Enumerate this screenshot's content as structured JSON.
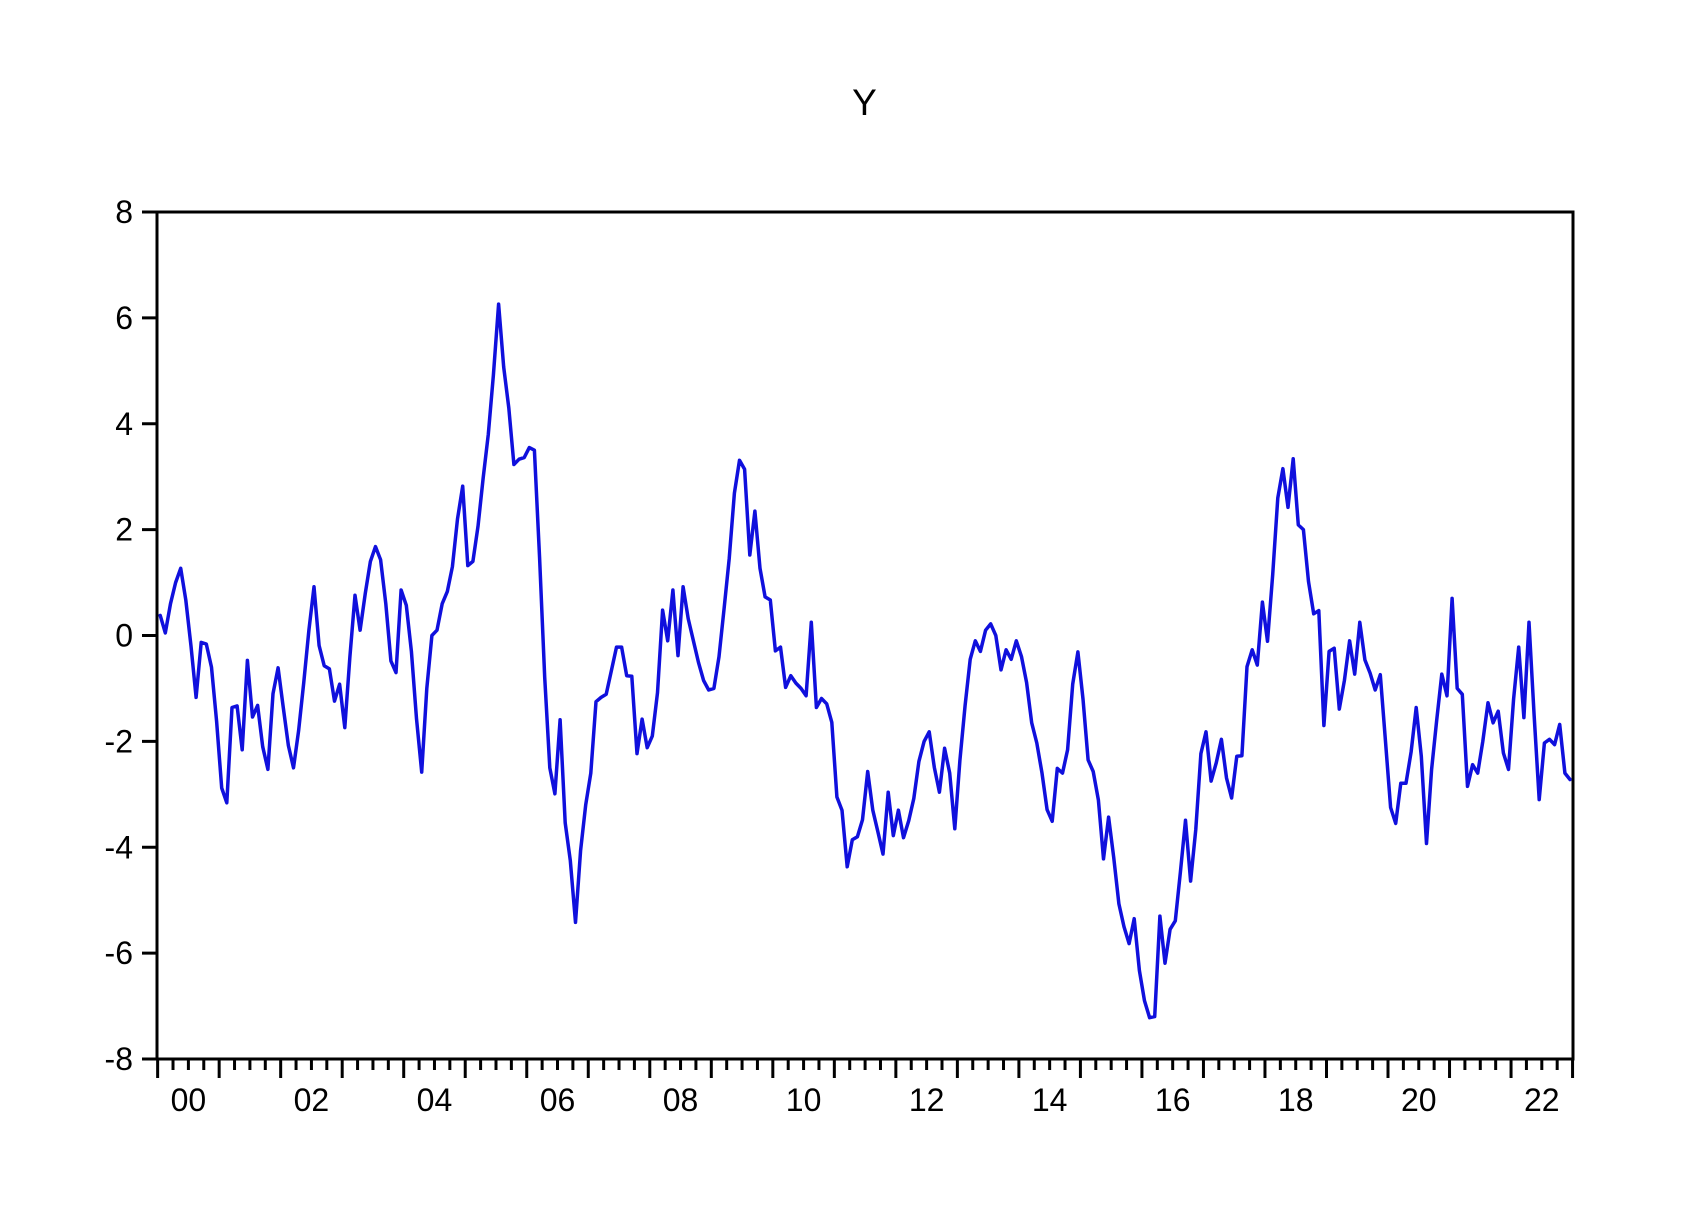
{
  "title": "Y",
  "chart_data": {
    "type": "line",
    "title": "Y",
    "series": [
      {
        "name": "Y",
        "color": "#1010dd",
        "start_year": 2000,
        "frequency": "monthly",
        "values": [
          0.38,
          0.05,
          0.6,
          1.0,
          1.27,
          0.67,
          -0.2,
          -1.17,
          -0.13,
          -0.16,
          -0.6,
          -1.62,
          -2.88,
          -3.16,
          -1.36,
          -1.33,
          -2.16,
          -0.47,
          -1.54,
          -1.32,
          -2.1,
          -2.53,
          -1.1,
          -0.61,
          -1.35,
          -2.08,
          -2.5,
          -1.8,
          -0.9,
          0.1,
          0.92,
          -0.19,
          -0.57,
          -0.63,
          -1.24,
          -0.92,
          -1.74,
          -0.4,
          0.76,
          0.1,
          0.8,
          1.4,
          1.68,
          1.43,
          0.6,
          -0.48,
          -0.7,
          0.86,
          0.57,
          -0.3,
          -1.57,
          -2.58,
          -1.0,
          0.0,
          0.1,
          0.6,
          0.83,
          1.3,
          2.2,
          2.82,
          1.32,
          1.4,
          2.06,
          2.98,
          3.8,
          4.92,
          6.26,
          5.07,
          4.3,
          3.23,
          3.33,
          3.36,
          3.55,
          3.5,
          1.46,
          -0.79,
          -2.5,
          -2.99,
          -1.59,
          -3.54,
          -4.25,
          -5.42,
          -4.06,
          -3.2,
          -2.6,
          -1.25,
          -1.17,
          -1.11,
          -0.67,
          -0.22,
          -0.22,
          -0.76,
          -0.77,
          -2.23,
          -1.58,
          -2.12,
          -1.9,
          -1.08,
          0.48,
          -0.1,
          0.86,
          -0.38,
          0.92,
          0.32,
          -0.1,
          -0.51,
          -0.85,
          -1.03,
          -1.0,
          -0.4,
          0.51,
          1.45,
          2.69,
          3.31,
          3.14,
          1.52,
          2.35,
          1.27,
          0.73,
          0.67,
          -0.29,
          -0.22,
          -0.98,
          -0.76,
          -0.9,
          -1.0,
          -1.14,
          0.25,
          -1.36,
          -1.19,
          -1.29,
          -1.64,
          -3.05,
          -3.3,
          -4.37,
          -3.86,
          -3.8,
          -3.48,
          -2.57,
          -3.3,
          -3.71,
          -4.13,
          -2.96,
          -3.78,
          -3.3,
          -3.82,
          -3.5,
          -3.08,
          -2.38,
          -2.0,
          -1.82,
          -2.49,
          -2.96,
          -2.13,
          -2.6,
          -3.65,
          -2.36,
          -1.32,
          -0.45,
          -0.1,
          -0.3,
          0.1,
          0.22,
          0.0,
          -0.65,
          -0.27,
          -0.45,
          -0.1,
          -0.4,
          -0.89,
          -1.65,
          -2.03,
          -2.6,
          -3.29,
          -3.51,
          -2.51,
          -2.6,
          -2.16,
          -0.92,
          -0.31,
          -1.2,
          -2.35,
          -2.57,
          -3.11,
          -4.22,
          -3.43,
          -4.19,
          -5.07,
          -5.5,
          -5.82,
          -5.35,
          -6.33,
          -6.9,
          -7.22,
          -7.2,
          -5.3,
          -6.19,
          -5.55,
          -5.39,
          -4.47,
          -3.49,
          -4.64,
          -3.66,
          -2.23,
          -1.82,
          -2.75,
          -2.4,
          -1.96,
          -2.69,
          -3.07,
          -2.28,
          -2.27,
          -0.59,
          -0.27,
          -0.56,
          0.63,
          -0.11,
          1.15,
          2.6,
          3.15,
          2.42,
          3.34,
          2.09,
          2.0,
          1.02,
          0.41,
          0.47,
          -1.7,
          -0.3,
          -0.24,
          -1.39,
          -0.85,
          -0.1,
          -0.73,
          0.25,
          -0.46,
          -0.71,
          -1.03,
          -0.74,
          -1.98,
          -3.25,
          -3.55,
          -2.79,
          -2.79,
          -2.2,
          -1.36,
          -2.28,
          -3.93,
          -2.53,
          -1.6,
          -0.73,
          -1.14,
          0.7,
          -1.0,
          -1.11,
          -2.85,
          -2.44,
          -2.6,
          -2.0,
          -1.27,
          -1.65,
          -1.43,
          -2.22,
          -2.53,
          -1.2,
          -0.22,
          -1.55,
          0.25,
          -1.5,
          -3.1,
          -2.03,
          -1.96,
          -2.06,
          -1.68,
          -2.6,
          -2.72
        ]
      }
    ],
    "xlabel": "",
    "ylabel": "",
    "x_tick_labels": [
      "00",
      "02",
      "04",
      "06",
      "08",
      "10",
      "12",
      "14",
      "16",
      "18",
      "20",
      "22"
    ],
    "x_minor_ticks_per_year": 4,
    "y_ticks": [
      8,
      6,
      4,
      2,
      0,
      -2,
      -4,
      -6,
      -8
    ],
    "ylim": [
      -8,
      8
    ],
    "grid": "off",
    "legend": "none",
    "axis_color": "#000000",
    "background_color": "#ffffff"
  }
}
